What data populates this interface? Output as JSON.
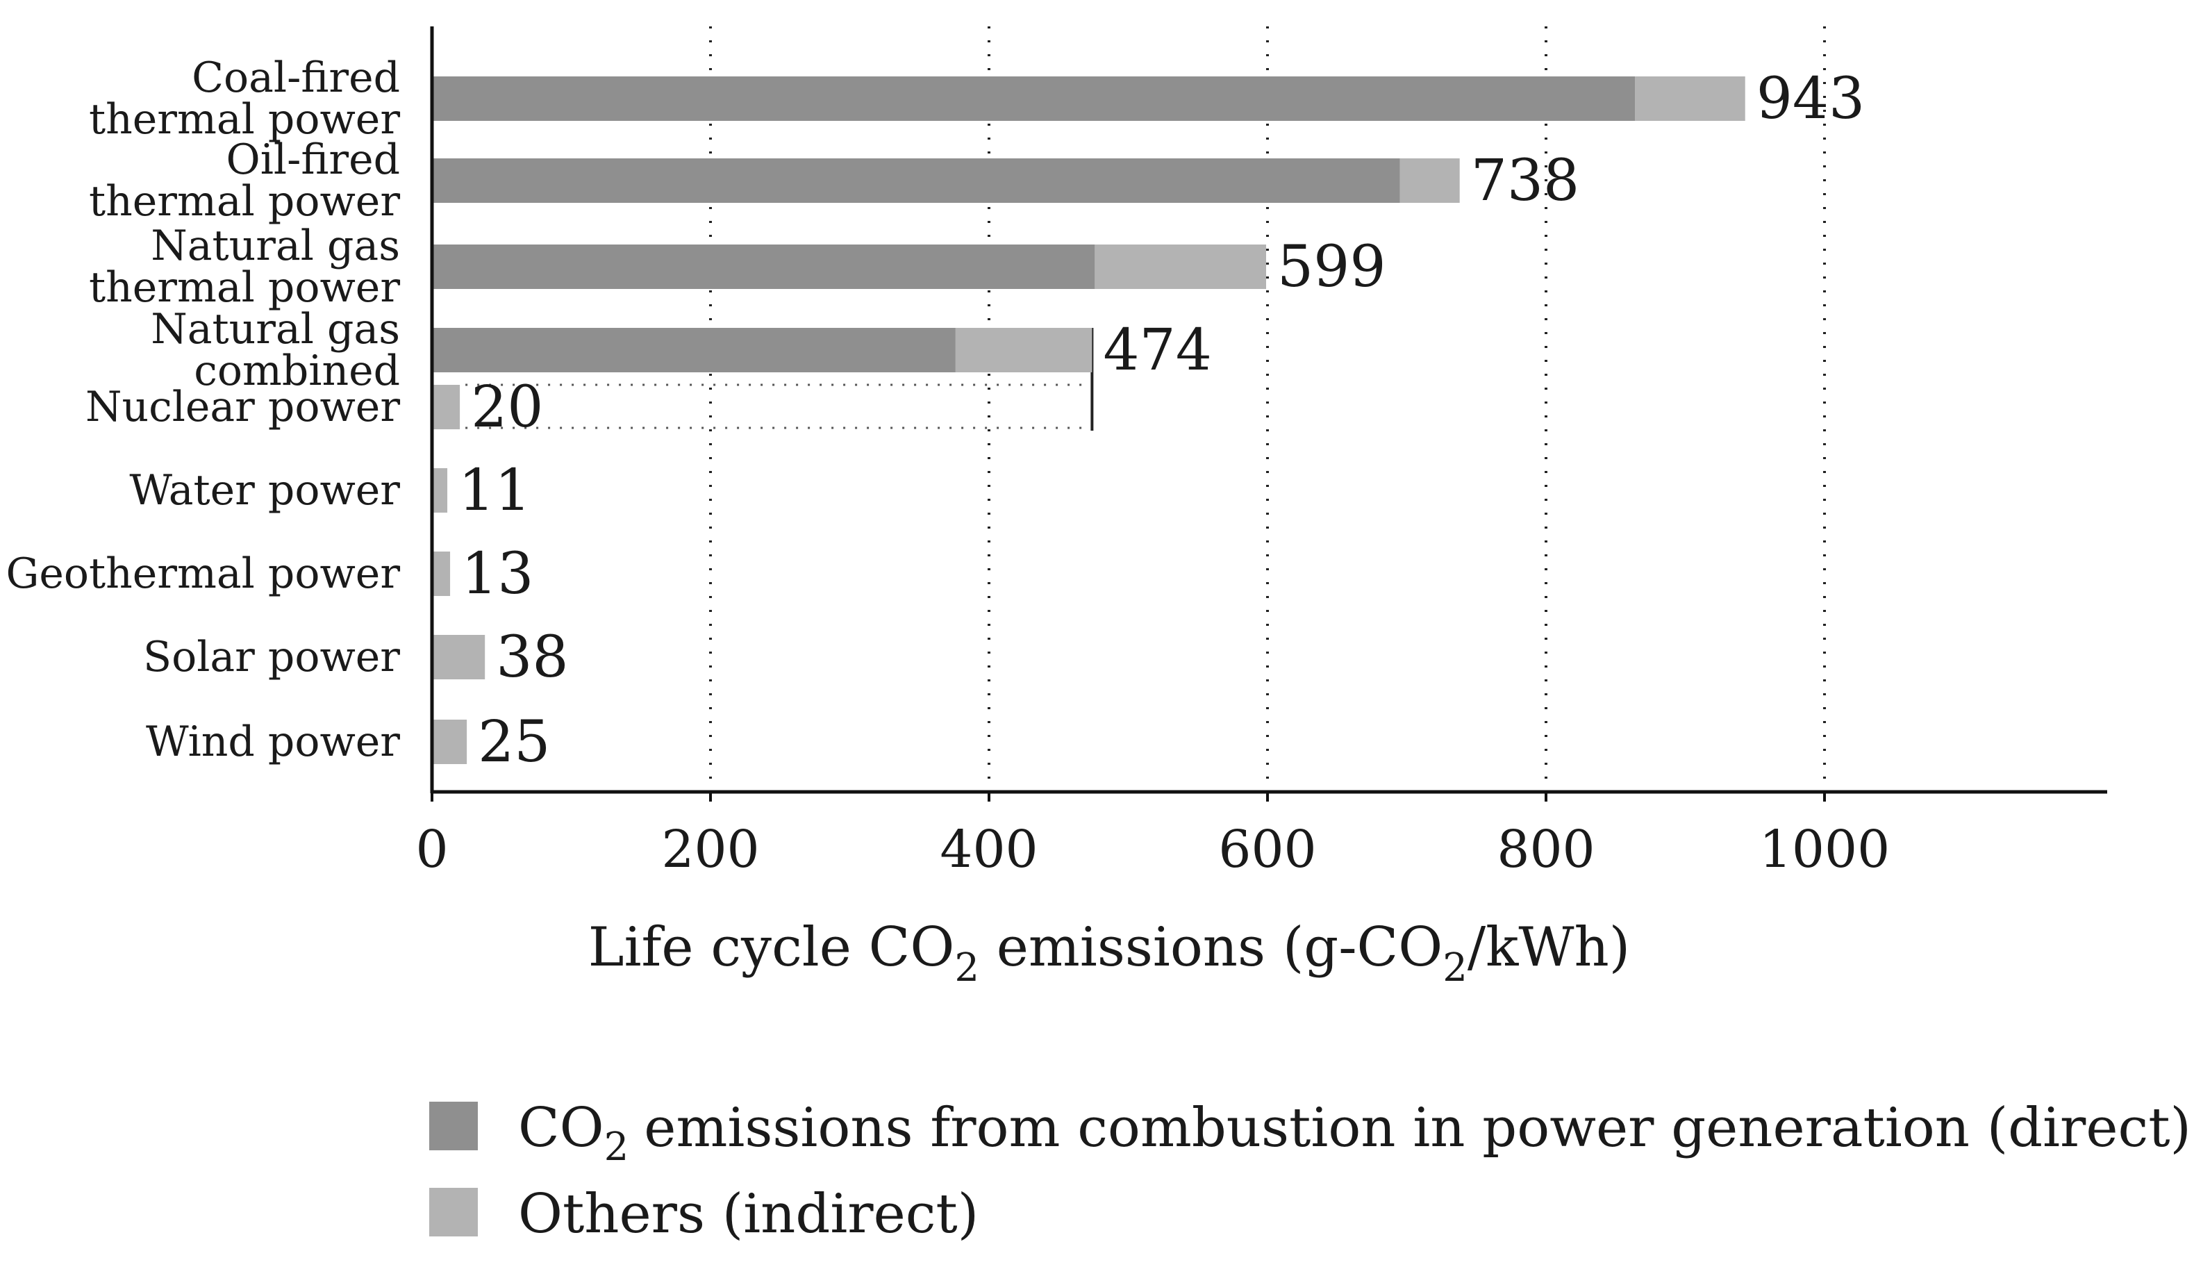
{
  "chart_data": {
    "type": "bar",
    "orientation": "horizontal",
    "stacked": true,
    "categories": [
      [
        "Coal-fired",
        "thermal power"
      ],
      [
        "Oil-fired",
        "thermal power"
      ],
      [
        "Natural gas",
        "thermal power"
      ],
      [
        "Natural gas",
        "combined"
      ],
      [
        "Nuclear power"
      ],
      [
        "Water power"
      ],
      [
        "Geothermal power"
      ],
      [
        "Solar power"
      ],
      [
        "Wind power"
      ]
    ],
    "series": [
      {
        "name": "emissions from combustion in power generation (direct)",
        "name_prefix": "CO",
        "name_sub": "2",
        "color": "#8f8f8f",
        "values": [
          864,
          695,
          476,
          376,
          0,
          0,
          0,
          0,
          0
        ]
      },
      {
        "name": "Others (indirect)",
        "color": "#b3b3b3",
        "values": [
          79,
          43,
          123,
          98,
          20,
          11,
          13,
          38,
          25
        ]
      }
    ],
    "totals": [
      "943",
      "738",
      "599",
      "474",
      "20",
      "11",
      "13",
      "38",
      "25"
    ],
    "xticks": [
      "0",
      "200",
      "400",
      "600",
      "800",
      "1000"
    ],
    "xlim": [
      0,
      1200
    ],
    "grid": "vertical dotted",
    "xlabel": {
      "part1": "Life cycle CO",
      "sub1": "2",
      "part2": " emissions (g-CO",
      "sub2": "2",
      "part3": "/kWh)"
    },
    "reference_value": 474,
    "legend_position": "bottom"
  }
}
